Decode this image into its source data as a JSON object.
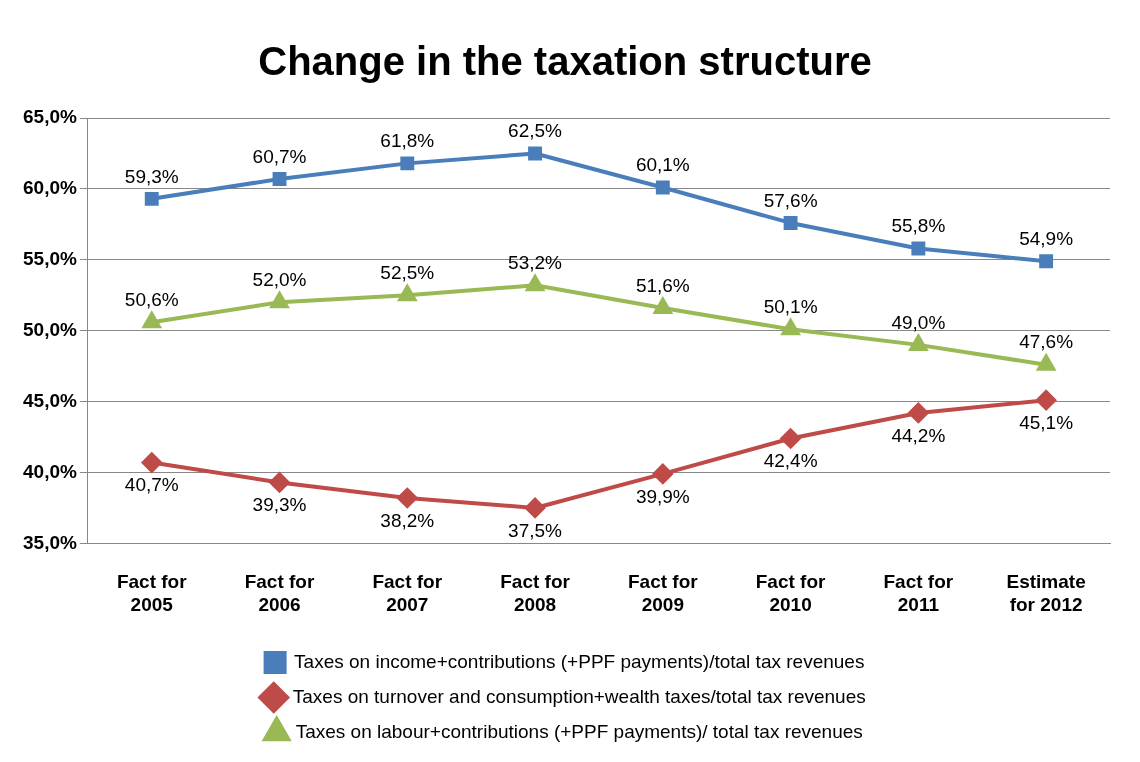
{
  "chart_data": {
    "type": "line",
    "title": "Change in the taxation structure",
    "categories": [
      "Fact for 2005",
      "Fact for 2006",
      "Fact for 2007",
      "Fact for 2008",
      "Fact for 2009",
      "Fact for 2010",
      "Fact for 2011",
      "Estimate for 2012"
    ],
    "series": [
      {
        "name": "Taxes on income+contributions (+PPF payments)/total tax revenues",
        "color": "#4a7ebb",
        "marker": "square",
        "values": [
          59.3,
          60.7,
          61.8,
          62.5,
          60.1,
          57.6,
          55.8,
          54.9
        ],
        "value_labels": [
          "59,3%",
          "60,7%",
          "61,8%",
          "62,5%",
          "60,1%",
          "57,6%",
          "55,8%",
          "54,9%"
        ]
      },
      {
        "name": "Taxes on turnover and consumption+wealth taxes/total tax revenues",
        "color": "#be4b48",
        "marker": "diamond",
        "values": [
          40.7,
          39.3,
          38.2,
          37.5,
          39.9,
          42.4,
          44.2,
          45.1
        ],
        "value_labels": [
          "40,7%",
          "39,3%",
          "38,2%",
          "37,5%",
          "39,9%",
          "42,4%",
          "44,2%",
          "45,1%"
        ]
      },
      {
        "name": "Taxes on labour+contributions (+PPF payments)/ total tax revenues",
        "color": "#98b954",
        "marker": "triangle",
        "values": [
          50.6,
          52.0,
          52.5,
          53.2,
          51.6,
          50.1,
          49.0,
          47.6
        ],
        "value_labels": [
          "50,6%",
          "52,0%",
          "52,5%",
          "53,2%",
          "51,6%",
          "50,1%",
          "49,0%",
          "47,6%"
        ]
      }
    ],
    "ylim": [
      35,
      65
    ],
    "yticks": [
      {
        "value": 35,
        "label": "35,0%"
      },
      {
        "value": 40,
        "label": "40,0%"
      },
      {
        "value": 45,
        "label": "45,0%"
      },
      {
        "value": 50,
        "label": "50,0%"
      },
      {
        "value": 55,
        "label": "55,0%"
      },
      {
        "value": 60,
        "label": "60,0%"
      },
      {
        "value": 65,
        "label": "65,0%"
      }
    ],
    "grid": "y",
    "legend": "bottom",
    "line_style": "solid"
  }
}
